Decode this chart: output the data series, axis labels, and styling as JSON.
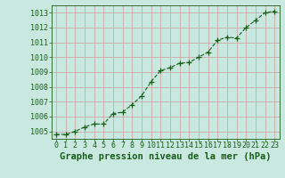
{
  "x": [
    0,
    1,
    2,
    3,
    4,
    5,
    6,
    7,
    8,
    9,
    10,
    11,
    12,
    13,
    14,
    15,
    16,
    17,
    18,
    19,
    20,
    21,
    22,
    23
  ],
  "y": [
    1004.8,
    1004.8,
    1005.0,
    1005.3,
    1005.5,
    1005.5,
    1006.2,
    1006.3,
    1006.8,
    1007.4,
    1008.35,
    1009.1,
    1009.3,
    1009.6,
    1009.65,
    1010.0,
    1010.35,
    1011.15,
    1011.35,
    1011.3,
    1012.0,
    1012.5,
    1013.0,
    1013.1
  ],
  "line_color": "#1a5c1a",
  "marker": "+",
  "marker_size": 4,
  "marker_color": "#1a5c1a",
  "bg_color": "#c8e8e0",
  "grid_color": "#c8a0a0",
  "xlabel": "Graphe pression niveau de la mer (hPa)",
  "xlabel_color": "#1a5c1a",
  "xlabel_fontsize": 7.5,
  "tick_color": "#1a5c1a",
  "tick_fontsize": 6,
  "ylim": [
    1004.5,
    1013.5
  ],
  "xlim": [
    -0.5,
    23.5
  ],
  "yticks": [
    1005,
    1006,
    1007,
    1008,
    1009,
    1010,
    1011,
    1012,
    1013
  ],
  "xticks": [
    0,
    1,
    2,
    3,
    4,
    5,
    6,
    7,
    8,
    9,
    10,
    11,
    12,
    13,
    14,
    15,
    16,
    17,
    18,
    19,
    20,
    21,
    22,
    23
  ],
  "spine_color": "#1a5c1a",
  "linewidth": 0.8
}
